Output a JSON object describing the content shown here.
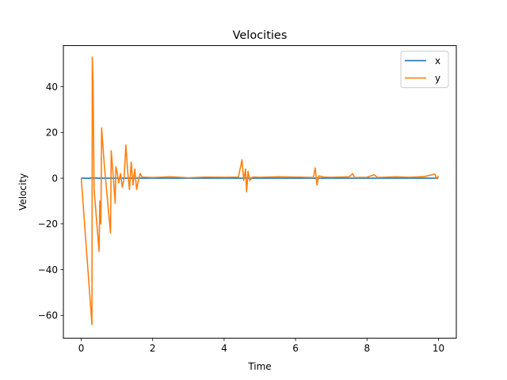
{
  "chart_data": {
    "type": "line",
    "title": "Velocities",
    "xlabel": "Time",
    "ylabel": "Velocity",
    "xlim": [
      -0.5,
      10.5
    ],
    "ylim": [
      -70,
      58
    ],
    "xticks": [
      0,
      2,
      4,
      6,
      8,
      10
    ],
    "yticks": [
      -60,
      -40,
      -20,
      0,
      20,
      40
    ],
    "ytick_labels": [
      "−60",
      "−40",
      "−20",
      "0",
      "20",
      "40"
    ],
    "legend_position": "top-right",
    "grid": false,
    "series": [
      {
        "name": "x",
        "color": "#1f77b4",
        "points": [
          [
            0,
            0
          ],
          [
            10,
            0
          ]
        ]
      },
      {
        "name": "y",
        "color": "#ff7f0e",
        "points": [
          [
            0,
            0
          ],
          [
            0.3,
            -64
          ],
          [
            0.31,
            53
          ],
          [
            0.33,
            42
          ],
          [
            0.36,
            -5
          ],
          [
            0.5,
            -32
          ],
          [
            0.52,
            -10
          ],
          [
            0.55,
            -20
          ],
          [
            0.57,
            22
          ],
          [
            0.65,
            5
          ],
          [
            0.75,
            -12
          ],
          [
            0.82,
            -24
          ],
          [
            0.84,
            12
          ],
          [
            0.9,
            0
          ],
          [
            0.95,
            -11
          ],
          [
            0.97,
            5
          ],
          [
            1.0,
            3
          ],
          [
            1.05,
            -2
          ],
          [
            1.1,
            2
          ],
          [
            1.15,
            -4
          ],
          [
            1.2,
            0
          ],
          [
            1.25,
            14.5
          ],
          [
            1.3,
            3
          ],
          [
            1.35,
            -5
          ],
          [
            1.4,
            7
          ],
          [
            1.45,
            -3
          ],
          [
            1.5,
            4
          ],
          [
            1.55,
            -5
          ],
          [
            1.6,
            -1
          ],
          [
            1.65,
            2
          ],
          [
            1.7,
            0.5
          ],
          [
            2.0,
            0.3
          ],
          [
            2.5,
            0.6
          ],
          [
            3.0,
            0.2
          ],
          [
            3.5,
            0.5
          ],
          [
            4.0,
            0.4
          ],
          [
            4.4,
            0.5
          ],
          [
            4.5,
            8
          ],
          [
            4.55,
            -1
          ],
          [
            4.6,
            4
          ],
          [
            4.63,
            -6
          ],
          [
            4.67,
            3
          ],
          [
            4.72,
            -1
          ],
          [
            4.8,
            0.5
          ],
          [
            5.0,
            0.4
          ],
          [
            5.5,
            0.6
          ],
          [
            6.0,
            0.5
          ],
          [
            6.5,
            0.3
          ],
          [
            6.55,
            4.5
          ],
          [
            6.6,
            -3
          ],
          [
            6.65,
            1
          ],
          [
            6.8,
            0.5
          ],
          [
            7.0,
            0.4
          ],
          [
            7.5,
            0.6
          ],
          [
            7.6,
            2
          ],
          [
            7.65,
            0.3
          ],
          [
            8.0,
            0.4
          ],
          [
            8.2,
            1.5
          ],
          [
            8.3,
            0.3
          ],
          [
            8.8,
            0.6
          ],
          [
            9.2,
            0.4
          ],
          [
            9.6,
            0.7
          ],
          [
            9.9,
            1.8
          ],
          [
            9.95,
            -0.2
          ],
          [
            10.0,
            1
          ]
        ]
      }
    ]
  }
}
